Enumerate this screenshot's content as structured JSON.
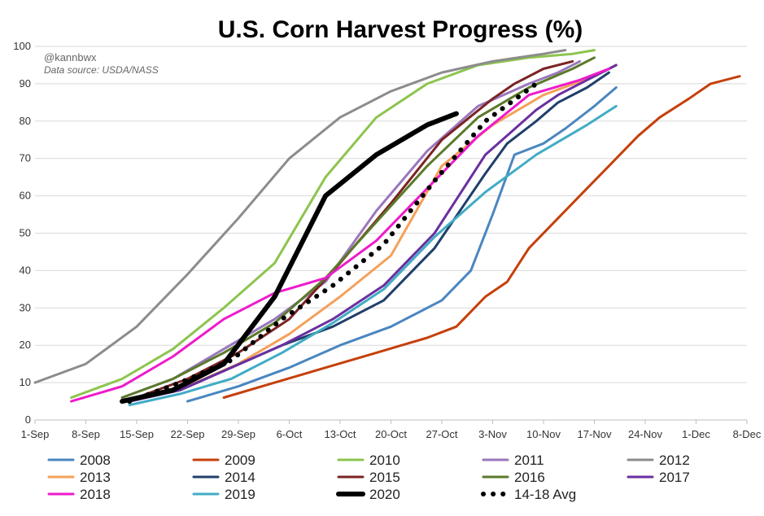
{
  "chart_data": {
    "type": "line",
    "title": "U.S. Corn Harvest Progress (%)",
    "annotations": [
      "@kannbwx",
      "Data source: USDA/NASS"
    ],
    "x_tick_labels": [
      "1-Sep",
      "8-Sep",
      "15-Sep",
      "22-Sep",
      "29-Sep",
      "6-Oct",
      "13-Oct",
      "20-Oct",
      "27-Oct",
      "3-Nov",
      "10-Nov",
      "17-Nov",
      "24-Nov",
      "1-Dec",
      "8-Dec"
    ],
    "y_tick_labels": [
      "0",
      "10",
      "20",
      "30",
      "40",
      "50",
      "60",
      "70",
      "80",
      "90",
      "100"
    ],
    "xlabel": "",
    "ylabel": "",
    "xlim_days_since_sep1": [
      0,
      98
    ],
    "ylim": [
      0,
      100
    ],
    "grid": "horizontal",
    "legend_position": "bottom",
    "series": [
      {
        "name": "2008",
        "color": "#4a86c0",
        "width": 3,
        "dash": "none",
        "x": [
          21,
          28,
          35,
          42,
          49,
          56,
          60,
          63,
          66,
          70,
          73,
          77,
          80
        ],
        "y": [
          5,
          9,
          14,
          20,
          25,
          32,
          40,
          55,
          71,
          74,
          78,
          84,
          89
        ]
      },
      {
        "name": "2009",
        "color": "#c5400b",
        "width": 3,
        "dash": "none",
        "x": [
          26,
          33,
          40,
          47,
          54,
          58,
          62,
          65,
          68,
          72,
          75,
          79,
          83,
          86,
          90,
          93,
          97
        ],
        "y": [
          6,
          10,
          14,
          18,
          22,
          25,
          33,
          37,
          46,
          54,
          60,
          68,
          76,
          81,
          86,
          90,
          92
        ]
      },
      {
        "name": "2010",
        "color": "#8dc44e",
        "width": 3,
        "dash": "none",
        "x": [
          5,
          12,
          19,
          26,
          33,
          40,
          47,
          54,
          61,
          68,
          74,
          77
        ],
        "y": [
          6,
          11,
          19,
          30,
          42,
          65,
          81,
          90,
          95,
          97,
          98,
          99
        ]
      },
      {
        "name": "2011",
        "color": "#9a77be",
        "width": 3,
        "dash": "none",
        "x": [
          12,
          19,
          26,
          33,
          40,
          47,
          54,
          61,
          68,
          72,
          75
        ],
        "y": [
          6,
          11,
          19,
          27,
          37,
          56,
          72,
          84,
          90,
          93,
          96
        ]
      },
      {
        "name": "2012",
        "color": "#8c8c8c",
        "width": 3,
        "dash": "none",
        "x": [
          0,
          7,
          14,
          21,
          28,
          35,
          42,
          49,
          56,
          63,
          70,
          73
        ],
        "y": [
          10,
          15,
          25,
          39,
          54,
          70,
          81,
          88,
          93,
          96,
          98,
          99
        ]
      },
      {
        "name": "2013",
        "color": "#f5a05a",
        "width": 3,
        "dash": "none",
        "x": [
          14,
          21,
          28,
          35,
          42,
          49,
          56,
          63,
          70,
          77,
          80
        ],
        "y": [
          6,
          9,
          15,
          23,
          33,
          44,
          68,
          79,
          87,
          92,
          95
        ]
      },
      {
        "name": "2014",
        "color": "#1f3f6b",
        "width": 3,
        "dash": "none",
        "x": [
          13,
          20,
          27,
          34,
          41,
          48,
          55,
          62,
          65,
          69,
          72,
          76,
          79
        ],
        "y": [
          5,
          8,
          14,
          20,
          25,
          32,
          46,
          66,
          74,
          80,
          85,
          89,
          93
        ]
      },
      {
        "name": "2015",
        "color": "#7b2323",
        "width": 3,
        "dash": "none",
        "x": [
          14,
          21,
          28,
          35,
          42,
          49,
          56,
          63,
          66,
          70,
          74
        ],
        "y": [
          6,
          11,
          18,
          27,
          42,
          58,
          75,
          86,
          90,
          94,
          96
        ]
      },
      {
        "name": "2016",
        "color": "#5a7a2a",
        "width": 3,
        "dash": "none",
        "x": [
          12,
          19,
          26,
          33,
          40,
          47,
          54,
          61,
          68,
          74,
          77
        ],
        "y": [
          6,
          11,
          18,
          26,
          38,
          53,
          68,
          81,
          89,
          94,
          97
        ]
      },
      {
        "name": "2017",
        "color": "#6a2fa0",
        "width": 3,
        "dash": "none",
        "x": [
          13,
          20,
          27,
          34,
          41,
          48,
          55,
          62,
          69,
          72,
          76,
          80
        ],
        "y": [
          5,
          8,
          14,
          20,
          27,
          36,
          50,
          71,
          83,
          87,
          91,
          95
        ]
      },
      {
        "name": "2018",
        "color": "#ee1bcb",
        "width": 3,
        "dash": "none",
        "x": [
          5,
          12,
          19,
          26,
          33,
          40,
          47,
          54,
          61,
          68,
          75,
          79
        ],
        "y": [
          5,
          9,
          17,
          27,
          34,
          38,
          48,
          62,
          76,
          87,
          91,
          94
        ]
      },
      {
        "name": "2019",
        "color": "#41acc5",
        "width": 3,
        "dash": "none",
        "x": [
          13,
          20,
          27,
          34,
          41,
          48,
          55,
          62,
          69,
          76,
          80
        ],
        "y": [
          4,
          7,
          11,
          18,
          26,
          35,
          49,
          61,
          71,
          79,
          84
        ]
      },
      {
        "name": "2020",
        "color": "#000000",
        "width": 6,
        "dash": "none",
        "x": [
          12,
          19,
          26,
          33,
          40,
          47,
          54,
          58
        ],
        "y": [
          5,
          8,
          15,
          33,
          60,
          71,
          79,
          82
        ]
      },
      {
        "name": "14-18 Avg",
        "color": "#000000",
        "width": 6,
        "dash": "0.1 12",
        "x": [
          13,
          20,
          27,
          34,
          41,
          48,
          55,
          62,
          69
        ],
        "y": [
          5,
          10,
          16,
          27,
          36,
          47,
          64,
          80,
          90
        ]
      }
    ]
  }
}
